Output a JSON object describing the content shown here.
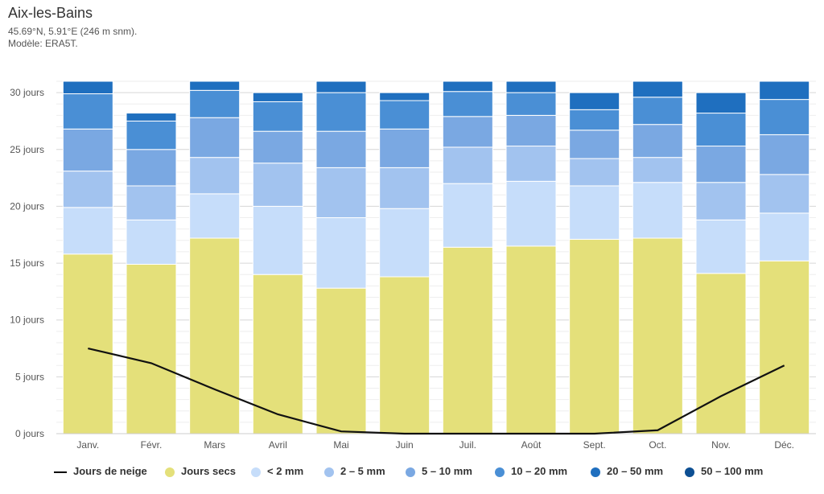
{
  "header": {
    "title": "Aix-les-Bains",
    "coords": "45.69°N, 5.91°E (246 m snm).",
    "model": "Modèle: ERA5T."
  },
  "chart_data": {
    "type": "bar",
    "stacked": true,
    "categories": [
      "Janv.",
      "Févr.",
      "Mars",
      "Avril",
      "Mai",
      "Juin",
      "Juil.",
      "Août",
      "Sept.",
      "Oct.",
      "Nov.",
      "Déc."
    ],
    "y_ticks": [
      "0 jours",
      "5 jours",
      "10 jours",
      "15 jours",
      "20 jours",
      "25 jours",
      "30 jours"
    ],
    "ylim": [
      0,
      31
    ],
    "grid": true,
    "legend_position": "bottom",
    "series": [
      {
        "name": "Jours secs",
        "color": "#e4e07a",
        "values": [
          15.8,
          14.9,
          17.2,
          14.0,
          12.8,
          13.8,
          16.4,
          16.5,
          17.1,
          17.2,
          14.1,
          15.2
        ]
      },
      {
        "name": "< 2 mm",
        "color": "#c6ddfa",
        "values": [
          4.1,
          3.9,
          3.9,
          6.0,
          6.2,
          6.0,
          5.6,
          5.7,
          4.7,
          4.9,
          4.7,
          4.2
        ]
      },
      {
        "name": "2 – 5 mm",
        "color": "#a2c3ef",
        "values": [
          3.2,
          3.0,
          3.2,
          3.8,
          4.4,
          3.6,
          3.2,
          3.1,
          2.4,
          2.2,
          3.3,
          3.4
        ]
      },
      {
        "name": "5 – 10 mm",
        "color": "#7aa8e2",
        "values": [
          3.7,
          3.2,
          3.5,
          2.8,
          3.2,
          3.4,
          2.7,
          2.7,
          2.5,
          2.9,
          3.2,
          3.5
        ]
      },
      {
        "name": "10 – 20 mm",
        "color": "#4a8fd5",
        "values": [
          3.1,
          2.5,
          2.4,
          2.6,
          3.4,
          2.5,
          2.2,
          2.0,
          1.8,
          2.4,
          2.9,
          3.1
        ]
      },
      {
        "name": "20 – 50 mm",
        "color": "#1f6fbf",
        "values": [
          1.1,
          0.7,
          0.8,
          0.8,
          1.0,
          0.7,
          0.9,
          1.0,
          1.5,
          1.4,
          1.8,
          1.6
        ]
      },
      {
        "name": "50 – 100 mm",
        "color": "#0d4f93",
        "values": [
          0,
          0,
          0,
          0,
          0,
          0,
          0,
          0,
          0,
          0,
          0,
          0
        ]
      }
    ],
    "line_series": {
      "name": "Jours de neige",
      "color": "#111111",
      "values": [
        7.5,
        6.2,
        3.9,
        1.7,
        0.2,
        0.0,
        0.0,
        0.0,
        0.0,
        0.3,
        3.3,
        6.0
      ]
    }
  }
}
